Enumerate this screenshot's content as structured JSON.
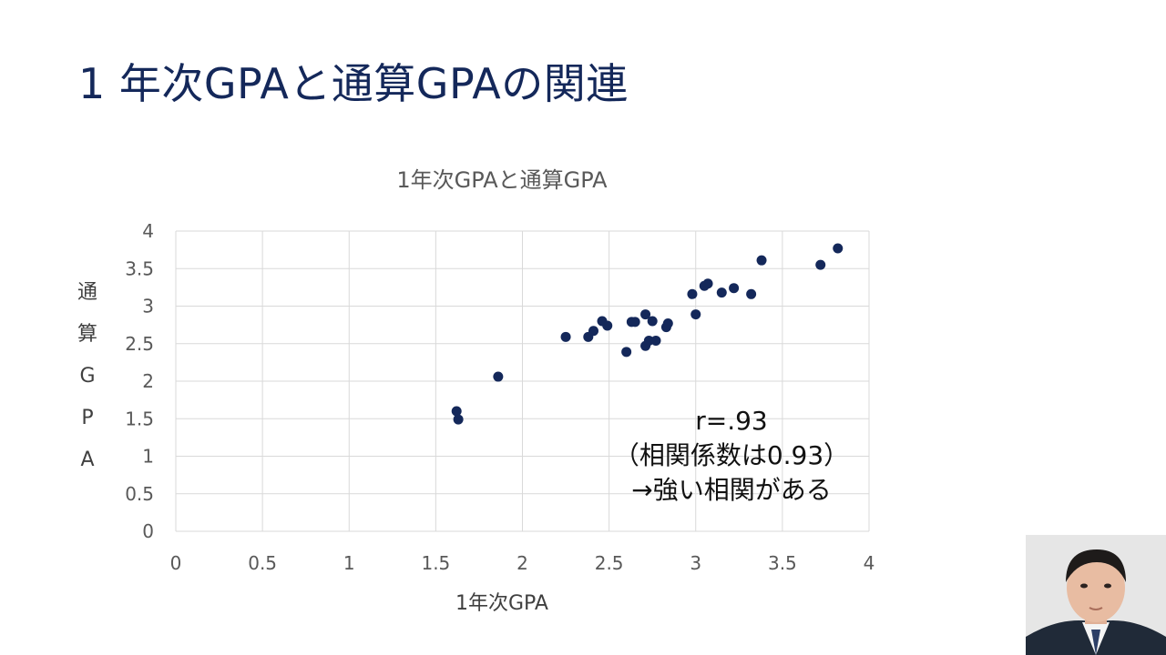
{
  "slide": {
    "title": "1 年次GPAと通算GPAの関連"
  },
  "chart_data": {
    "type": "scatter",
    "title": "1年次GPAと通算GPA",
    "xlabel": "1年次GPA",
    "ylabel": "通算GPA",
    "xlim": [
      0,
      4
    ],
    "ylim": [
      0,
      4
    ],
    "x_ticks": [
      "0",
      "0.5",
      "1",
      "1.5",
      "2",
      "2.5",
      "3",
      "3.5",
      "4"
    ],
    "y_ticks": [
      "0",
      "0.5",
      "1",
      "1.5",
      "2",
      "2.5",
      "3",
      "3.5",
      "4"
    ],
    "grid": true,
    "marker_color": "#14285a",
    "points": [
      [
        1.62,
        1.6
      ],
      [
        1.63,
        1.49
      ],
      [
        1.86,
        2.06
      ],
      [
        2.25,
        2.59
      ],
      [
        2.38,
        2.59
      ],
      [
        2.41,
        2.67
      ],
      [
        2.46,
        2.8
      ],
      [
        2.49,
        2.74
      ],
      [
        2.6,
        2.39
      ],
      [
        2.63,
        2.79
      ],
      [
        2.65,
        2.79
      ],
      [
        2.71,
        2.89
      ],
      [
        2.71,
        2.47
      ],
      [
        2.73,
        2.54
      ],
      [
        2.75,
        2.8
      ],
      [
        2.77,
        2.54
      ],
      [
        2.83,
        2.72
      ],
      [
        2.84,
        2.77
      ],
      [
        2.98,
        3.16
      ],
      [
        3.0,
        2.89
      ],
      [
        3.05,
        3.27
      ],
      [
        3.07,
        3.3
      ],
      [
        3.15,
        3.18
      ],
      [
        3.22,
        3.24
      ],
      [
        3.32,
        3.16
      ],
      [
        3.38,
        3.61
      ],
      [
        3.72,
        3.55
      ],
      [
        3.82,
        3.77
      ]
    ],
    "annotation": [
      "r=.93",
      "（相関係数は0.93）",
      "→強い相関がある"
    ]
  },
  "webcam": {
    "icon": "presenter-video-icon"
  }
}
